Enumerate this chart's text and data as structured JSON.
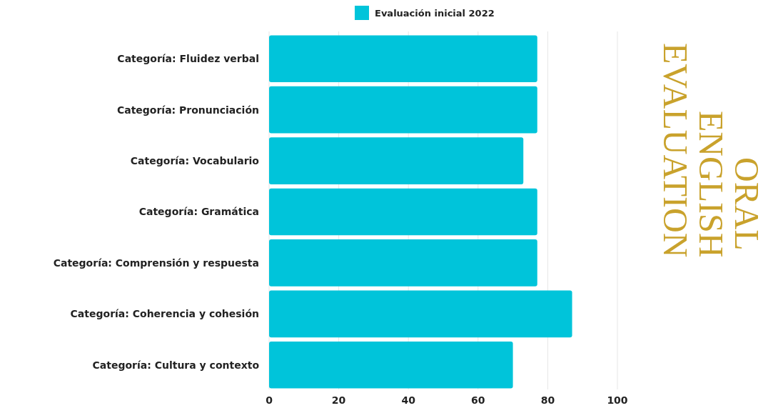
{
  "chart_data": {
    "type": "bar",
    "orientation": "horizontal",
    "title": "ORAL ENGLISH EVALUATION",
    "categories": [
      "Categoría: Fluidez verbal",
      "Categoría: Pronunciación",
      "Categoría: Vocabulario",
      "Categoría: Gramática",
      "Categoría: Comprensión y respuesta",
      "Categoría: Coherencia y cohesión",
      "Categoría: Cultura y contexto"
    ],
    "series": [
      {
        "name": "Evaluación inicial 2022",
        "color": "#00c4da",
        "values": [
          77,
          77,
          73,
          77,
          77,
          87,
          70
        ]
      }
    ],
    "xlim": [
      0,
      100
    ],
    "xticks": [
      0,
      20,
      40,
      60,
      80,
      100
    ],
    "grid": "x",
    "legend": "top"
  }
}
